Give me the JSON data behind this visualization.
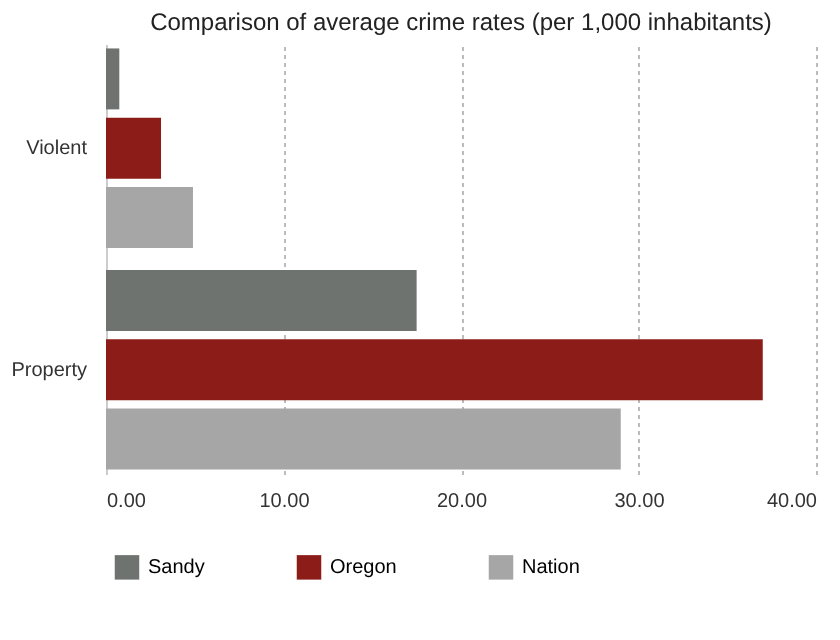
{
  "chart_data": {
    "type": "bar",
    "orientation": "horizontal",
    "title": "Comparison of average crime rates (per 1,000 inhabitants)",
    "categories": [
      "Violent",
      "Property"
    ],
    "series": [
      {
        "name": "Sandy",
        "color": "#6e7370",
        "values": [
          0.75,
          17.5
        ]
      },
      {
        "name": "Oregon",
        "color": "#8b1c17",
        "values": [
          3.1,
          37.0
        ]
      },
      {
        "name": "Nation",
        "color": "#a6a6a6",
        "values": [
          4.9,
          29.0
        ]
      }
    ],
    "xlim": [
      0,
      40
    ],
    "xticks": [
      {
        "value": 0,
        "label": "0.00"
      },
      {
        "value": 10,
        "label": "10.00"
      },
      {
        "value": 20,
        "label": "20.00"
      },
      {
        "value": 30,
        "label": "30.00"
      },
      {
        "value": 40,
        "label": "40.00"
      }
    ],
    "grid": "x",
    "legend": "bottom"
  }
}
